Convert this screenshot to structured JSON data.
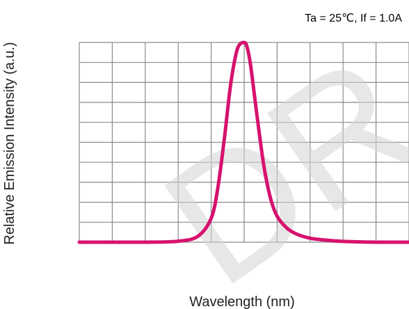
{
  "chart_data": {
    "type": "line",
    "title": "",
    "annotation": "Ta = 25℃,  If = 1.0A",
    "xlabel": "Wavelength (nm)",
    "ylabel": "Relative Emission Intensity (a.u.)",
    "watermark": "DR",
    "grid": true,
    "x_divisions": 10,
    "y_divisions": 10,
    "xlim": [
      0,
      10
    ],
    "ylim": [
      0,
      1
    ],
    "series": [
      {
        "color": "#d6126e",
        "x": [
          0.0,
          1.0,
          2.0,
          3.0,
          3.6,
          4.0,
          4.2,
          4.4,
          4.6,
          4.8,
          5.0,
          5.1,
          5.2,
          5.4,
          5.6,
          5.8,
          6.0,
          6.3,
          6.6,
          7.0,
          7.5,
          8.0,
          9.0,
          10.0
        ],
        "y": [
          0.0,
          0.0,
          0.0,
          0.005,
          0.03,
          0.12,
          0.27,
          0.52,
          0.8,
          0.97,
          1.0,
          0.97,
          0.88,
          0.62,
          0.38,
          0.22,
          0.13,
          0.07,
          0.04,
          0.02,
          0.01,
          0.004,
          0.0,
          0.0
        ]
      }
    ]
  }
}
